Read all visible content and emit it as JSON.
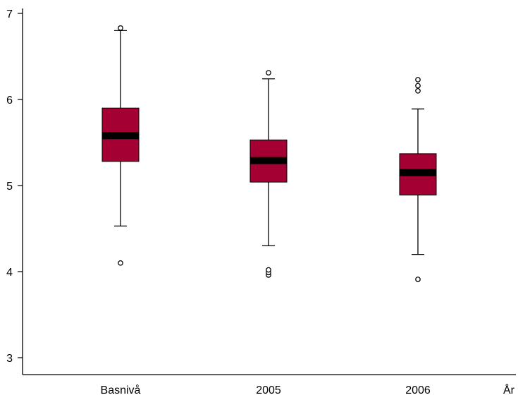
{
  "chart_data": {
    "type": "box",
    "title": "",
    "xlabel": "År",
    "ylabel": "",
    "ylim": [
      2.8,
      7.05
    ],
    "yticks": [
      3,
      4,
      5,
      6,
      7
    ],
    "grid": false,
    "box_color": "#A50034",
    "median_color": "#000000",
    "categories": [
      "Basnivå",
      "2005",
      "2006"
    ],
    "boxes": [
      {
        "q1": 5.28,
        "median": 5.58,
        "q3": 5.9,
        "whisker_low": 4.53,
        "whisker_high": 6.8,
        "outliers": [
          4.1,
          6.83
        ]
      },
      {
        "q1": 5.04,
        "median": 5.29,
        "q3": 5.53,
        "whisker_low": 4.3,
        "whisker_high": 6.24,
        "outliers": [
          3.96,
          3.99,
          4.02,
          6.31
        ]
      },
      {
        "q1": 4.89,
        "median": 5.15,
        "q3": 5.37,
        "whisker_low": 4.2,
        "whisker_high": 5.89,
        "outliers": [
          3.91,
          6.1,
          6.16,
          6.23
        ]
      }
    ]
  }
}
